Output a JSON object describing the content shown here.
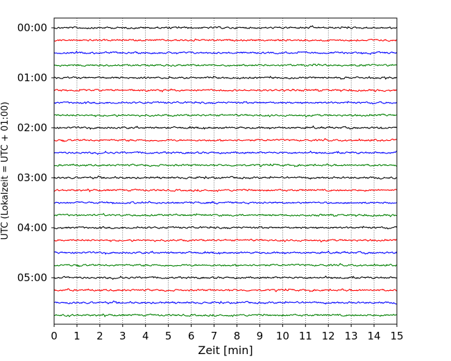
{
  "chart_data": {
    "type": "line",
    "description_kind": "helicorder",
    "xlabel": "Zeit  [min]",
    "ylabel": "UTC (Lokalzeit = UTC + 01:00)",
    "xlim": [
      0,
      15
    ],
    "x_ticks": [
      "0",
      "1",
      "2",
      "3",
      "4",
      "5",
      "6",
      "7",
      "8",
      "9",
      "10",
      "11",
      "12",
      "13",
      "14",
      "15"
    ],
    "y_ticks": [
      "00:00",
      "01:00",
      "02:00",
      "03:00",
      "04:00",
      "05:00"
    ],
    "trace_start_times_min": [
      0,
      15,
      30,
      45,
      60,
      75,
      90,
      105,
      120,
      135,
      150,
      165,
      180,
      195,
      210,
      225,
      240,
      255,
      270,
      285,
      300,
      315,
      330,
      345
    ],
    "trace_colors": [
      "#000000",
      "#ff0000",
      "#0000ff",
      "#008000"
    ],
    "vertical_grid": "dotted",
    "colors": {
      "black": "#000000",
      "red": "#ff0000",
      "blue": "#0000ff",
      "green": "#008000"
    }
  }
}
